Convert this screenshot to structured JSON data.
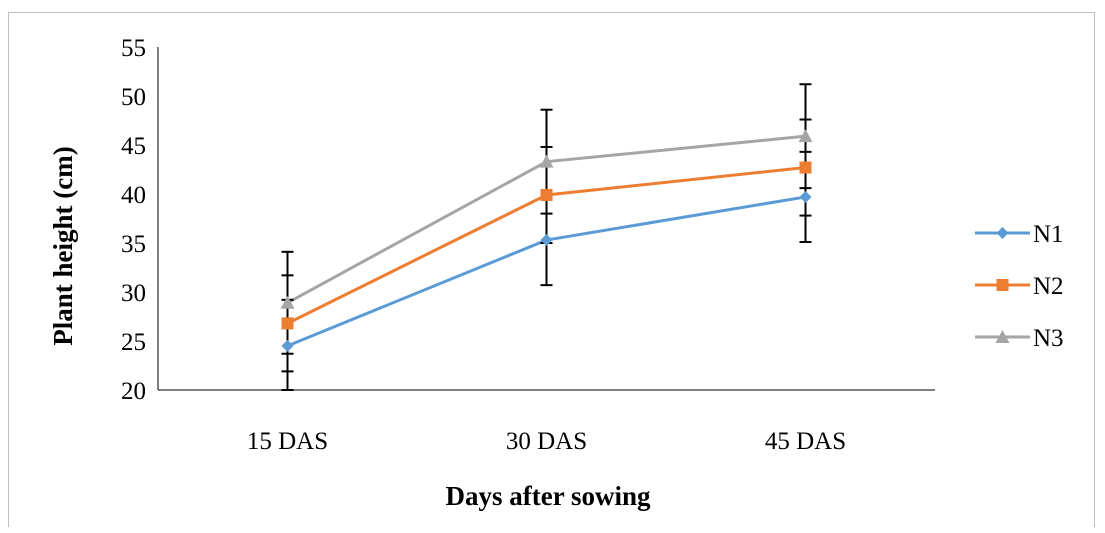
{
  "chart_data": {
    "type": "line",
    "categories": [
      "15 DAS",
      "30 DAS",
      "45 DAS"
    ],
    "series": [
      {
        "name": "N1",
        "values": [
          24.5,
          35.3,
          39.7
        ],
        "error": [
          4.7,
          4.6,
          4.6
        ],
        "color": "#5B9BD5",
        "marker": "diamond"
      },
      {
        "name": "N2",
        "values": [
          26.8,
          39.9,
          42.7
        ],
        "error": [
          4.9,
          4.9,
          4.9
        ],
        "color": "#ED7D31",
        "marker": "square"
      },
      {
        "name": "N3",
        "values": [
          28.9,
          43.3,
          45.9
        ],
        "error": [
          5.2,
          5.3,
          5.3
        ],
        "color": "#A5A5A5",
        "marker": "triangle"
      }
    ],
    "xlabel": "Days after sowing",
    "ylabel": "Plant height (cm)",
    "ylim": [
      20,
      55
    ],
    "yticks": [
      20,
      25,
      30,
      35,
      40,
      45,
      50,
      55
    ],
    "legend": "right",
    "grid": false
  }
}
